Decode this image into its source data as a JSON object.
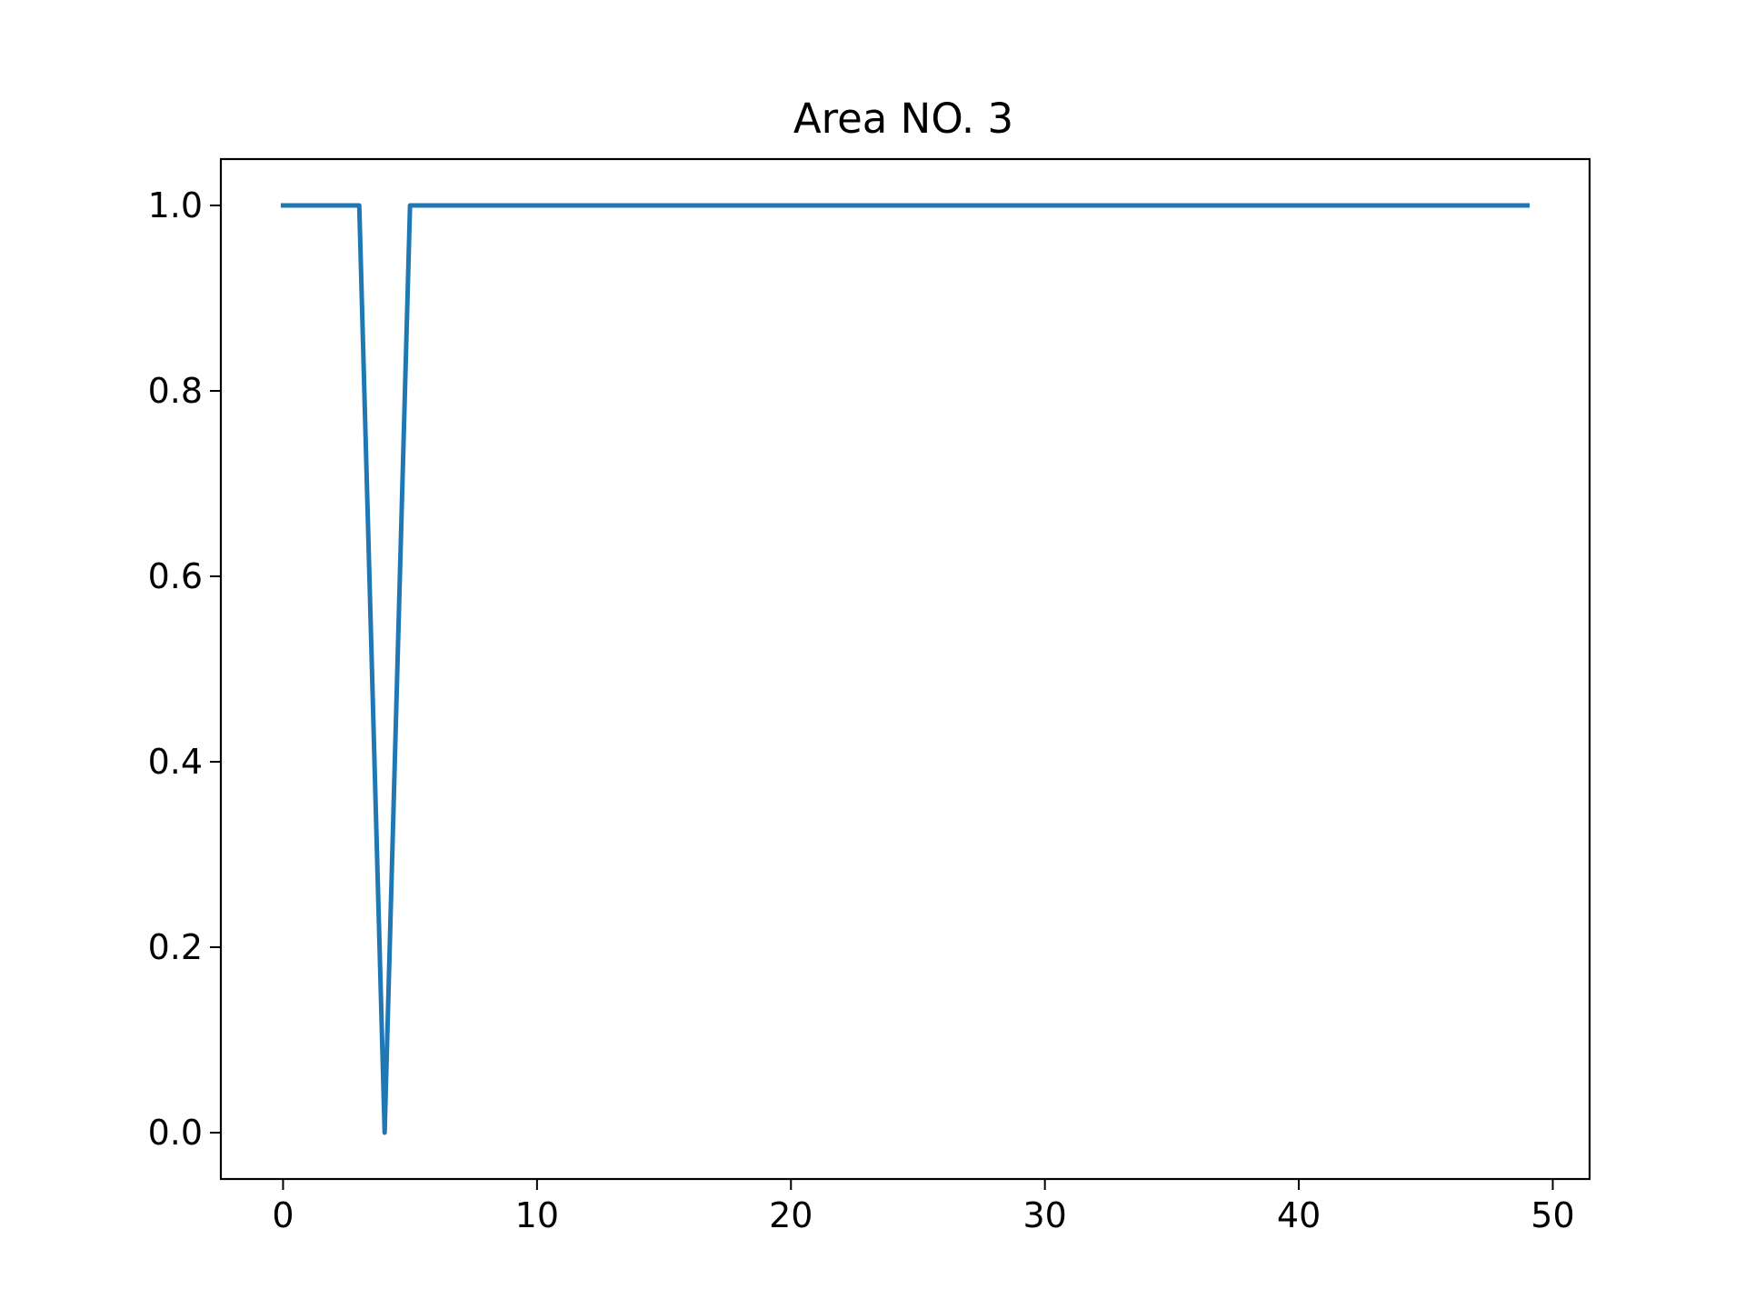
{
  "chart_data": {
    "type": "line",
    "title": "Area NO. 3",
    "xlabel": "",
    "ylabel": "",
    "xlim": [
      -2.45,
      51.45
    ],
    "ylim": [
      -0.05,
      1.05
    ],
    "xticks": [
      0,
      10,
      20,
      30,
      40,
      50
    ],
    "xtick_labels": [
      "0",
      "10",
      "20",
      "30",
      "40",
      "50"
    ],
    "yticks": [
      0.0,
      0.2,
      0.4,
      0.6,
      0.8,
      1.0
    ],
    "ytick_labels": [
      "0.0",
      "0.2",
      "0.4",
      "0.6",
      "0.8",
      "1.0"
    ],
    "grid": false,
    "series": [
      {
        "color": "#1f77b4",
        "x": [
          0,
          1,
          2,
          3,
          4,
          5,
          6,
          7,
          8,
          9,
          10,
          11,
          12,
          13,
          14,
          15,
          16,
          17,
          18,
          19,
          20,
          21,
          22,
          23,
          24,
          25,
          26,
          27,
          28,
          29,
          30,
          31,
          32,
          33,
          34,
          35,
          36,
          37,
          38,
          39,
          40,
          41,
          42,
          43,
          44,
          45,
          46,
          47,
          48,
          49
        ],
        "y": [
          1,
          1,
          1,
          1,
          0,
          1,
          1,
          1,
          1,
          1,
          1,
          1,
          1,
          1,
          1,
          1,
          1,
          1,
          1,
          1,
          1,
          1,
          1,
          1,
          1,
          1,
          1,
          1,
          1,
          1,
          1,
          1,
          1,
          1,
          1,
          1,
          1,
          1,
          1,
          1,
          1,
          1,
          1,
          1,
          1,
          1,
          1,
          1,
          1,
          1
        ]
      }
    ]
  }
}
